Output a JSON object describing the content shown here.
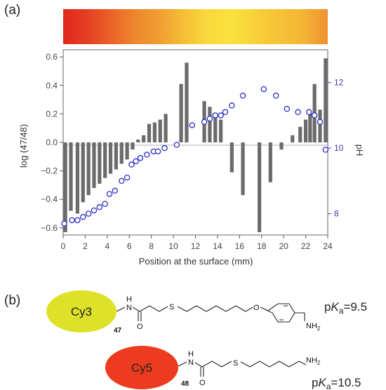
{
  "panel_labels": {
    "a": "(a)",
    "b": "(b)"
  },
  "chart_data": {
    "type": "bar",
    "xlabel": "Position at the surface (mm)",
    "ylabel": "log (47/48)",
    "y2label": "pH",
    "xlim": [
      0,
      24
    ],
    "ylim": [
      -0.65,
      0.65
    ],
    "y2lim": [
      7.35,
      13.0
    ],
    "xticks": [
      0,
      2,
      4,
      6,
      8,
      10,
      12,
      14,
      16,
      18,
      20,
      22,
      24
    ],
    "yticks": [
      -0.6,
      -0.4,
      -0.2,
      0.0,
      0.2,
      0.4,
      0.6
    ],
    "y2ticks": [
      8,
      10,
      12
    ],
    "colors": {
      "bars": "#6b6b6b",
      "ph_markers": "#2b2ec4",
      "right_axis": "#3a3ab0",
      "axes": "#555555"
    },
    "series": [
      {
        "kind": "bar",
        "x": [
          0.2,
          0.7,
          1.3,
          1.8,
          2.3,
          2.8,
          3.3,
          3.8,
          4.3,
          4.8,
          5.3,
          5.8,
          6.3,
          6.8,
          7.3,
          7.8,
          8.3,
          8.8,
          9.3,
          10.7,
          11.2,
          12.8,
          13.3,
          13.8,
          14.3,
          15.3,
          16.3,
          17.8,
          18.8,
          19.8,
          20.8,
          21.5,
          22.0,
          22.4,
          22.8,
          23.3,
          23.8
        ],
        "values": [
          -0.63,
          -0.48,
          -0.5,
          -0.42,
          -0.37,
          -0.32,
          -0.29,
          -0.25,
          -0.22,
          -0.19,
          -0.15,
          -0.12,
          -0.05,
          0.02,
          0.05,
          0.13,
          0.14,
          0.16,
          0.2,
          0.41,
          0.56,
          0.29,
          0.25,
          0.2,
          0.16,
          -0.21,
          -0.37,
          -0.63,
          -0.28,
          -0.05,
          0.05,
          0.11,
          0.16,
          0.21,
          0.41,
          0.23,
          0.59
        ]
      },
      {
        "kind": "scatter",
        "axis": "y2",
        "x": [
          0.1,
          0.8,
          1.3,
          1.8,
          2.3,
          2.8,
          3.3,
          3.8,
          4.2,
          4.7,
          5.3,
          5.8,
          6.2,
          6.6,
          7.0,
          7.6,
          8.2,
          8.6,
          9.2,
          10.3,
          11.7,
          12.8,
          13.3,
          13.8,
          14.3,
          14.7,
          15.3,
          16.3,
          18.2,
          19.3,
          20.3,
          21.3,
          22.3,
          22.8,
          23.3,
          23.8
        ],
        "values": [
          7.7,
          7.8,
          7.8,
          7.9,
          8.0,
          8.1,
          8.2,
          8.3,
          8.6,
          8.7,
          9.0,
          9.1,
          9.5,
          9.6,
          9.7,
          9.8,
          9.9,
          9.9,
          10.0,
          10.1,
          10.7,
          10.8,
          10.9,
          11.0,
          11.0,
          11.1,
          11.3,
          11.6,
          11.8,
          11.6,
          11.2,
          11.1,
          11.1,
          11.0,
          10.8,
          9.95
        ]
      }
    ],
    "ph_colorbar": {
      "x_range": [
        0,
        24
      ],
      "ph_values": [
        7.7,
        8.2,
        9.0,
        9.8,
        10.3,
        11.0,
        11.6,
        11.8,
        11.4,
        11.1,
        10.8,
        10.0
      ]
    }
  },
  "scheme": {
    "cy3": {
      "dye": "Cy3",
      "color": "#dde128",
      "compound": "47",
      "nh": "N",
      "h": "H",
      "s": "S",
      "o_carbonyl": "O",
      "o_ether": "O",
      "nh2": "NH",
      "nh2_sub": "2",
      "pka_prefix": "p",
      "pka_k": "K",
      "pka_sub": "a",
      "pka_value": "=9.5"
    },
    "cy5": {
      "dye": "Cy5",
      "color": "#ec3b1e",
      "compound": "48",
      "nh": "N",
      "h": "H",
      "s": "S",
      "o_carbonyl": "O",
      "nh2": "NH",
      "nh2_sub": "2",
      "pka_prefix": "p",
      "pka_k": "K",
      "pka_sub": "a",
      "pka_value": "=10.5"
    }
  }
}
